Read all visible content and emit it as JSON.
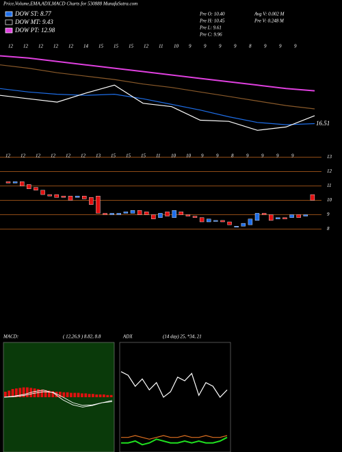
{
  "chart_data": [
    {
      "type": "line",
      "title": "Price,Volume,EMA,ADX,MACD Charts for 530888 MunafaSutra.com",
      "legend": [
        {
          "label": "DOW ST: 8.77",
          "color": "#1e6ee8"
        },
        {
          "label": "DOW MT: 9.43",
          "color": "#000000"
        },
        {
          "label": "DOW PT: 12.98",
          "color": "#e040e0"
        }
      ],
      "info": [
        "Pre  O: 10.40",
        "Pre  H: 10.45",
        "Pre  L: 9.61",
        "Pre  C: 9.96",
        "Avg V: 0.002  M",
        "Pre  V: 0.248  M"
      ],
      "x_labels": [
        "12",
        "12",
        "12",
        "12",
        "12",
        "14",
        "15",
        "15",
        "15",
        "12",
        "11",
        "10",
        "9",
        "9",
        "9",
        "9",
        "8",
        "9",
        "9",
        "9"
      ],
      "annotation": "16.51",
      "ylim": [
        14,
        24
      ],
      "series": [
        {
          "color": "#e040e0",
          "values": [
            22.7,
            22.5,
            22.2,
            21.9,
            21.6,
            21.3,
            21.0,
            20.7,
            20.4,
            20.1,
            19.8,
            19.6
          ]
        },
        {
          "color": "#8a5a2a",
          "values": [
            21.9,
            21.6,
            21.2,
            20.9,
            20.6,
            20.2,
            19.9,
            19.5,
            19.1,
            18.7,
            18.3,
            18.0
          ]
        },
        {
          "color": "#1e6ee8",
          "values": [
            19.8,
            19.5,
            19.3,
            19.2,
            19.3,
            18.9,
            18.4,
            17.9,
            17.3,
            16.8,
            16.6,
            16.7
          ]
        },
        {
          "color": "#ffffff",
          "values": [
            19.2,
            18.9,
            18.6,
            19.4,
            20.1,
            18.5,
            18.2,
            17.0,
            16.9,
            16.1,
            16.4,
            17.4
          ]
        }
      ]
    },
    {
      "type": "candlestick",
      "x_labels": [
        "12",
        "12",
        "12",
        "12",
        "12",
        "12",
        "13",
        "15",
        "15",
        "15",
        "11",
        "10",
        "10",
        "9",
        "9",
        "8",
        "9",
        "9",
        "9",
        "9"
      ],
      "ylim": [
        7.5,
        13.5
      ],
      "yticks": [
        8,
        9,
        10,
        11,
        12,
        13
      ],
      "up_color": "#1e6ee8",
      "down_color": "#e01010",
      "values": [
        [
          11.3,
          11.2
        ],
        [
          11.2,
          11.3
        ],
        [
          11.3,
          11.0
        ],
        [
          11.1,
          10.8
        ],
        [
          10.9,
          10.7
        ],
        [
          10.7,
          10.4
        ],
        [
          10.4,
          10.3
        ],
        [
          10.4,
          10.2
        ],
        [
          10.3,
          10.2
        ],
        [
          10.3,
          10.0
        ],
        [
          10.2,
          10.3
        ],
        [
          10.3,
          10.1
        ],
        [
          10.2,
          9.7
        ],
        [
          10.3,
          9.1
        ],
        [
          9.1,
          9.0
        ],
        [
          9.0,
          9.1
        ],
        [
          9.0,
          9.1
        ],
        [
          9.1,
          9.2
        ],
        [
          9.1,
          9.3
        ],
        [
          9.3,
          9.0
        ],
        [
          9.2,
          9.0
        ],
        [
          9.0,
          8.7
        ],
        [
          8.8,
          9.1
        ],
        [
          9.2,
          8.9
        ],
        [
          8.8,
          9.3
        ],
        [
          9.2,
          9.0
        ],
        [
          9.0,
          8.9
        ],
        [
          8.9,
          8.8
        ],
        [
          8.8,
          8.5
        ],
        [
          8.5,
          8.7
        ],
        [
          8.6,
          8.6
        ],
        [
          8.6,
          8.5
        ],
        [
          8.5,
          8.3
        ],
        [
          8.2,
          8.2
        ],
        [
          8.2,
          8.4
        ],
        [
          8.3,
          8.7
        ],
        [
          8.6,
          9.1
        ],
        [
          9.1,
          9.0
        ],
        [
          9.0,
          8.6
        ],
        [
          8.7,
          8.8
        ],
        [
          8.8,
          8.7
        ],
        [
          8.8,
          9.0
        ],
        [
          9.0,
          8.8
        ],
        [
          8.9,
          9.0
        ],
        [
          10.4,
          10.0
        ]
      ]
    },
    {
      "type": "macd",
      "title": "MACD:",
      "subtitle": "( 12,26,9 ) 8.82, 8.8",
      "ylim": [
        -1,
        1
      ],
      "histogram": [
        0.1,
        0.12,
        0.15,
        0.16,
        0.17,
        0.18,
        0.18,
        0.17,
        0.16,
        0.15,
        0.14,
        0.13,
        0.12,
        0.11,
        0.1,
        0.1,
        0.09,
        0.09,
        0.08,
        0.08,
        0.08,
        0.07,
        0.07,
        0.06,
        0.06,
        0.05,
        0.05,
        0.05,
        0.04,
        0.04
      ],
      "series": [
        {
          "color": "#ffffff",
          "values": [
            0.0,
            0.02,
            0.05,
            0.1,
            0.13,
            0.08,
            -0.05,
            -0.14,
            -0.18,
            -0.15,
            -0.1,
            -0.06
          ]
        },
        {
          "color": "#ffffff",
          "values": [
            0.0,
            0.01,
            0.03,
            0.07,
            0.1,
            0.09,
            0.0,
            -0.1,
            -0.15,
            -0.14,
            -0.1,
            -0.08
          ]
        }
      ]
    },
    {
      "type": "adx",
      "title": "ADX",
      "subtitle": "(14 day) 25, *34, 21",
      "ylim": [
        0,
        60
      ],
      "series": [
        {
          "color": "#ffffff",
          "values": [
            44,
            42,
            36,
            40,
            34,
            38,
            30,
            33,
            41,
            39,
            43,
            31,
            38,
            36,
            30,
            34
          ]
        },
        {
          "color": "#e07020",
          "values": [
            8,
            8,
            9,
            8,
            7,
            8,
            9,
            8,
            8,
            9,
            8,
            8,
            9,
            8,
            8,
            9
          ]
        },
        {
          "color": "#20e020",
          "values": [
            5,
            5,
            6,
            4,
            5,
            7,
            6,
            5,
            5,
            6,
            5,
            6,
            5,
            5,
            6,
            8
          ]
        }
      ]
    }
  ]
}
